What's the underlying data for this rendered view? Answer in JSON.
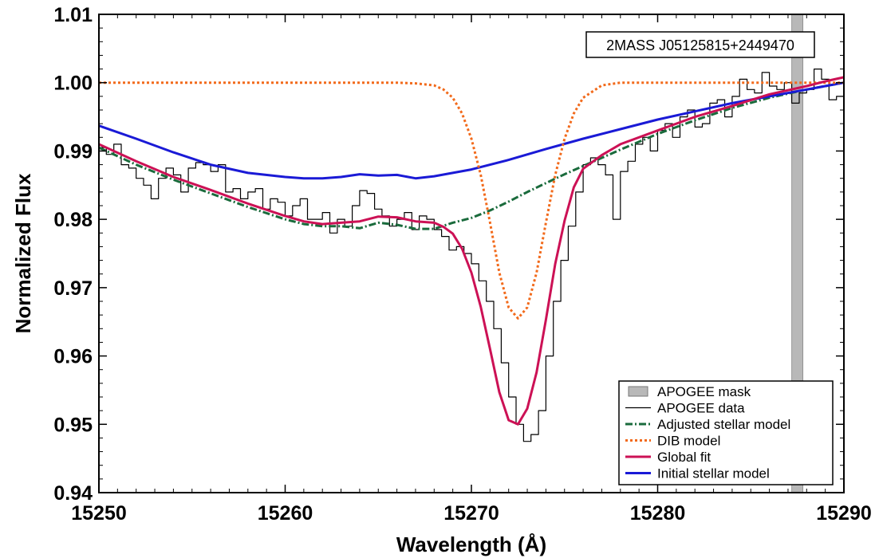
{
  "chart_data": {
    "type": "line",
    "xlabel": "Wavelength (Å)",
    "ylabel": "Normalized Flux",
    "xlim": [
      15250,
      15290
    ],
    "ylim": [
      0.94,
      1.01
    ],
    "x_ticks": [
      15250,
      15260,
      15270,
      15280,
      15290
    ],
    "x_tick_labels": [
      "15250",
      "15260",
      "15270",
      "15280",
      "15290"
    ],
    "y_ticks": [
      0.94,
      0.95,
      0.96,
      0.97,
      0.98,
      0.99,
      1.0,
      1.01
    ],
    "y_tick_labels": [
      "0.94",
      "0.95",
      "0.96",
      "0.97",
      "0.98",
      "0.99",
      "1.00",
      "1.01"
    ],
    "grid": false,
    "legend_position": "bottom-right",
    "annotation": "2MASS J05125815+2449470",
    "mask": {
      "name": "APOGEE mask",
      "x_range": [
        15287.2,
        15287.8
      ],
      "color": "#b8b8b8"
    },
    "series": [
      {
        "name": "APOGEE data",
        "style": "step",
        "color": "#000000",
        "x": [
          15250.0,
          15250.4,
          15250.8,
          15251.2,
          15251.6,
          15252.0,
          15252.4,
          15252.8,
          15253.2,
          15253.6,
          15254.0,
          15254.4,
          15254.8,
          15255.2,
          15255.6,
          15256.0,
          15256.4,
          15256.8,
          15257.2,
          15257.6,
          15258.0,
          15258.4,
          15258.8,
          15259.2,
          15259.6,
          15260.0,
          15260.4,
          15260.8,
          15261.2,
          15261.6,
          15262.0,
          15262.4,
          15262.8,
          15263.2,
          15263.6,
          15264.0,
          15264.4,
          15264.8,
          15265.2,
          15265.6,
          15266.0,
          15266.4,
          15266.8,
          15267.2,
          15267.6,
          15268.0,
          15268.4,
          15268.8,
          15269.2,
          15269.6,
          15270.0,
          15270.4,
          15270.8,
          15271.2,
          15271.6,
          15272.0,
          15272.4,
          15272.8,
          15273.2,
          15273.6,
          15274.0,
          15274.4,
          15274.8,
          15275.2,
          15275.6,
          15276.0,
          15276.4,
          15276.8,
          15277.2,
          15277.6,
          15278.0,
          15278.4,
          15278.8,
          15279.2,
          15279.6,
          15280.0,
          15280.4,
          15280.8,
          15281.2,
          15281.6,
          15282.0,
          15282.4,
          15282.8,
          15283.2,
          15283.6,
          15284.0,
          15284.4,
          15284.8,
          15285.2,
          15285.6,
          15286.0,
          15286.4,
          15286.8,
          15287.2,
          15287.6,
          15288.0,
          15288.4,
          15288.8,
          15289.2,
          15289.6
        ],
        "y": [
          0.9905,
          0.9895,
          0.991,
          0.988,
          0.9875,
          0.986,
          0.985,
          0.983,
          0.986,
          0.9875,
          0.9865,
          0.984,
          0.9875,
          0.9883,
          0.988,
          0.987,
          0.988,
          0.984,
          0.9845,
          0.983,
          0.984,
          0.9845,
          0.9815,
          0.983,
          0.9825,
          0.9805,
          0.982,
          0.983,
          0.98,
          0.98,
          0.981,
          0.978,
          0.98,
          0.979,
          0.982,
          0.9842,
          0.9838,
          0.9815,
          0.9805,
          0.979,
          0.98,
          0.981,
          0.9785,
          0.9805,
          0.98,
          0.9785,
          0.9775,
          0.9755,
          0.976,
          0.975,
          0.9735,
          0.971,
          0.968,
          0.964,
          0.959,
          0.954,
          0.95,
          0.9475,
          0.9485,
          0.952,
          0.96,
          0.968,
          0.974,
          0.979,
          0.984,
          0.988,
          0.989,
          0.988,
          0.9865,
          0.98,
          0.987,
          0.9885,
          0.991,
          0.992,
          0.99,
          0.993,
          0.994,
          0.992,
          0.995,
          0.996,
          0.9935,
          0.994,
          0.997,
          0.9975,
          0.995,
          0.998,
          1.0005,
          0.999,
          0.9985,
          1.0015,
          0.9995,
          0.999,
          1.0,
          0.997,
          0.9985,
          0.999,
          1.002,
          1.0005,
          0.9975,
          0.998
        ]
      },
      {
        "name": "Adjusted stellar model",
        "style": "dashdot",
        "color": "#1a6b3c",
        "x": [
          15250,
          15252,
          15254,
          15256,
          15258,
          15260,
          15261,
          15262,
          15263,
          15264,
          15265,
          15266,
          15267,
          15268,
          15269,
          15270,
          15271,
          15272,
          15273,
          15274,
          15275,
          15276,
          15277,
          15278,
          15280,
          15282,
          15284,
          15286,
          15288,
          15289,
          15290
        ],
        "y": [
          0.9905,
          0.988,
          0.9858,
          0.9838,
          0.9818,
          0.98,
          0.9793,
          0.979,
          0.979,
          0.9787,
          0.9795,
          0.9792,
          0.9786,
          0.9786,
          0.9795,
          0.9802,
          0.9813,
          0.9826,
          0.984,
          0.9853,
          0.9866,
          0.9878,
          0.989,
          0.9902,
          0.9925,
          0.9945,
          0.9963,
          0.9978,
          0.999,
          0.9995,
          1.0
        ]
      },
      {
        "name": "DIB model",
        "style": "dotted",
        "color": "#f26a1b",
        "x": [
          15250,
          15262,
          15266,
          15267,
          15268,
          15268.5,
          15269,
          15269.5,
          15270,
          15270.5,
          15271,
          15271.5,
          15272,
          15272.5,
          15273,
          15273.5,
          15274,
          15274.5,
          15275,
          15275.5,
          15276,
          15277,
          15278,
          15282,
          15290
        ],
        "y": [
          1.0,
          1.0,
          1.0,
          0.9999,
          0.9996,
          0.999,
          0.9978,
          0.9955,
          0.9918,
          0.9865,
          0.9795,
          0.9722,
          0.9671,
          0.9655,
          0.9671,
          0.9722,
          0.9795,
          0.9865,
          0.9918,
          0.9955,
          0.9978,
          0.9996,
          1.0,
          1.0,
          1.0
        ]
      },
      {
        "name": "Global fit",
        "style": "solid",
        "color": "#cc1155",
        "x": [
          15250,
          15252,
          15254,
          15256,
          15258,
          15260,
          15261,
          15262,
          15263,
          15264,
          15265,
          15266,
          15267,
          15268,
          15268.5,
          15269,
          15269.5,
          15270,
          15270.5,
          15271,
          15271.5,
          15272,
          15272.5,
          15273,
          15273.5,
          15274,
          15274.5,
          15275,
          15275.5,
          15276,
          15277,
          15278,
          15280,
          15282,
          15284,
          15286,
          15288,
          15289,
          15290
        ],
        "y": [
          0.991,
          0.9885,
          0.9862,
          0.9843,
          0.9823,
          0.9805,
          0.9797,
          0.9793,
          0.9795,
          0.9797,
          0.9804,
          0.9803,
          0.9797,
          0.9795,
          0.9789,
          0.9779,
          0.9757,
          0.9722,
          0.9672,
          0.961,
          0.9547,
          0.9506,
          0.95,
          0.9523,
          0.9576,
          0.9653,
          0.9735,
          0.9798,
          0.9847,
          0.9874,
          0.9894,
          0.991,
          0.993,
          0.995,
          0.9966,
          0.9983,
          0.9995,
          1.0002,
          1.0008
        ]
      },
      {
        "name": "Initial stellar model",
        "style": "solid",
        "color": "#1a1ad6",
        "x": [
          15250,
          15252,
          15254,
          15256,
          15258,
          15260,
          15261,
          15262,
          15263,
          15264,
          15265,
          15266,
          15267,
          15268,
          15269,
          15270,
          15272,
          15274,
          15276,
          15278,
          15280,
          15282,
          15284,
          15286,
          15288,
          15290
        ],
        "y": [
          0.9937,
          0.9918,
          0.9898,
          0.988,
          0.9868,
          0.9862,
          0.986,
          0.986,
          0.9862,
          0.9866,
          0.9864,
          0.9865,
          0.986,
          0.9863,
          0.9868,
          0.9873,
          0.9887,
          0.9903,
          0.9918,
          0.9932,
          0.9946,
          0.9958,
          0.997,
          0.998,
          0.999,
          1.0
        ]
      }
    ],
    "legend": [
      {
        "label": "APOGEE mask",
        "kind": "patch",
        "color": "#b8b8b8"
      },
      {
        "label": "APOGEE data",
        "kind": "line",
        "color": "#000000",
        "style": "solid-thin"
      },
      {
        "label": "Adjusted stellar model",
        "kind": "line",
        "color": "#1a6b3c",
        "style": "dashdot"
      },
      {
        "label": "DIB model",
        "kind": "line",
        "color": "#f26a1b",
        "style": "dotted"
      },
      {
        "label": "Global fit",
        "kind": "line",
        "color": "#cc1155",
        "style": "solid"
      },
      {
        "label": "Initial stellar model",
        "kind": "line",
        "color": "#1a1ad6",
        "style": "solid"
      }
    ]
  }
}
